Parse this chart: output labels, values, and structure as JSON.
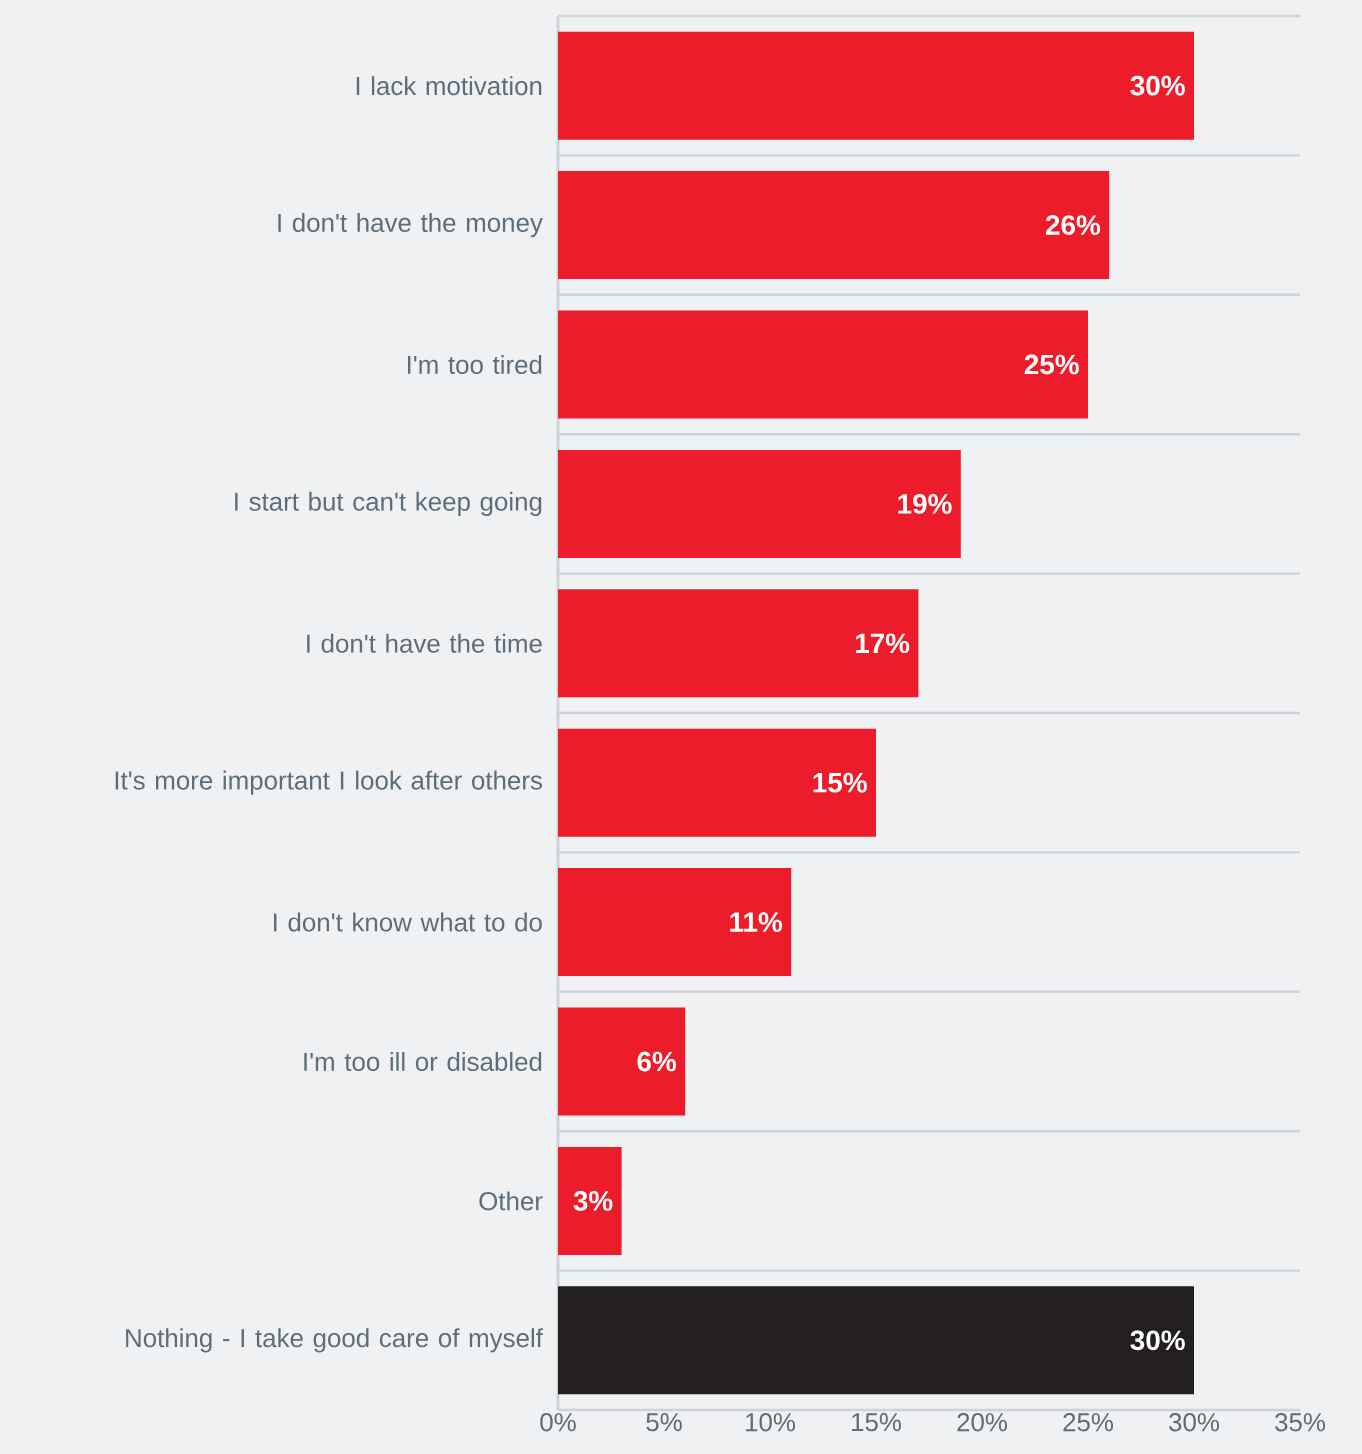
{
  "chart_data": {
    "type": "bar",
    "orientation": "horizontal",
    "categories": [
      "I lack motivation",
      "I don't have the money",
      "I'm too tired",
      "I start but can't keep going",
      "I don't have the time",
      "It's more important I look after others",
      "I don't know what to do",
      "I'm too ill or disabled",
      "Other",
      "Nothing - I take good care of myself"
    ],
    "values": [
      30,
      26,
      25,
      19,
      17,
      15,
      11,
      6,
      3,
      30
    ],
    "colors": [
      "#ed1c2a",
      "#ed1c2a",
      "#ed1c2a",
      "#ed1c2a",
      "#ed1c2a",
      "#ed1c2a",
      "#ed1c2a",
      "#ed1c2a",
      "#ed1c2a",
      "#231f20"
    ],
    "value_labels": [
      "30%",
      "26%",
      "25%",
      "19%",
      "17%",
      "15%",
      "11%",
      "6%",
      "3%",
      "30%"
    ],
    "xlim": [
      0,
      35
    ],
    "xticks": [
      {
        "value": 0,
        "label": "0%"
      },
      {
        "value": 5,
        "label": "5%"
      },
      {
        "value": 10,
        "label": "10%"
      },
      {
        "value": 15,
        "label": "15%"
      },
      {
        "value": 20,
        "label": "20%"
      },
      {
        "value": 25,
        "label": "25%"
      },
      {
        "value": 30,
        "label": "30%"
      },
      {
        "value": 35,
        "label": "35%"
      }
    ],
    "grid": "y"
  }
}
